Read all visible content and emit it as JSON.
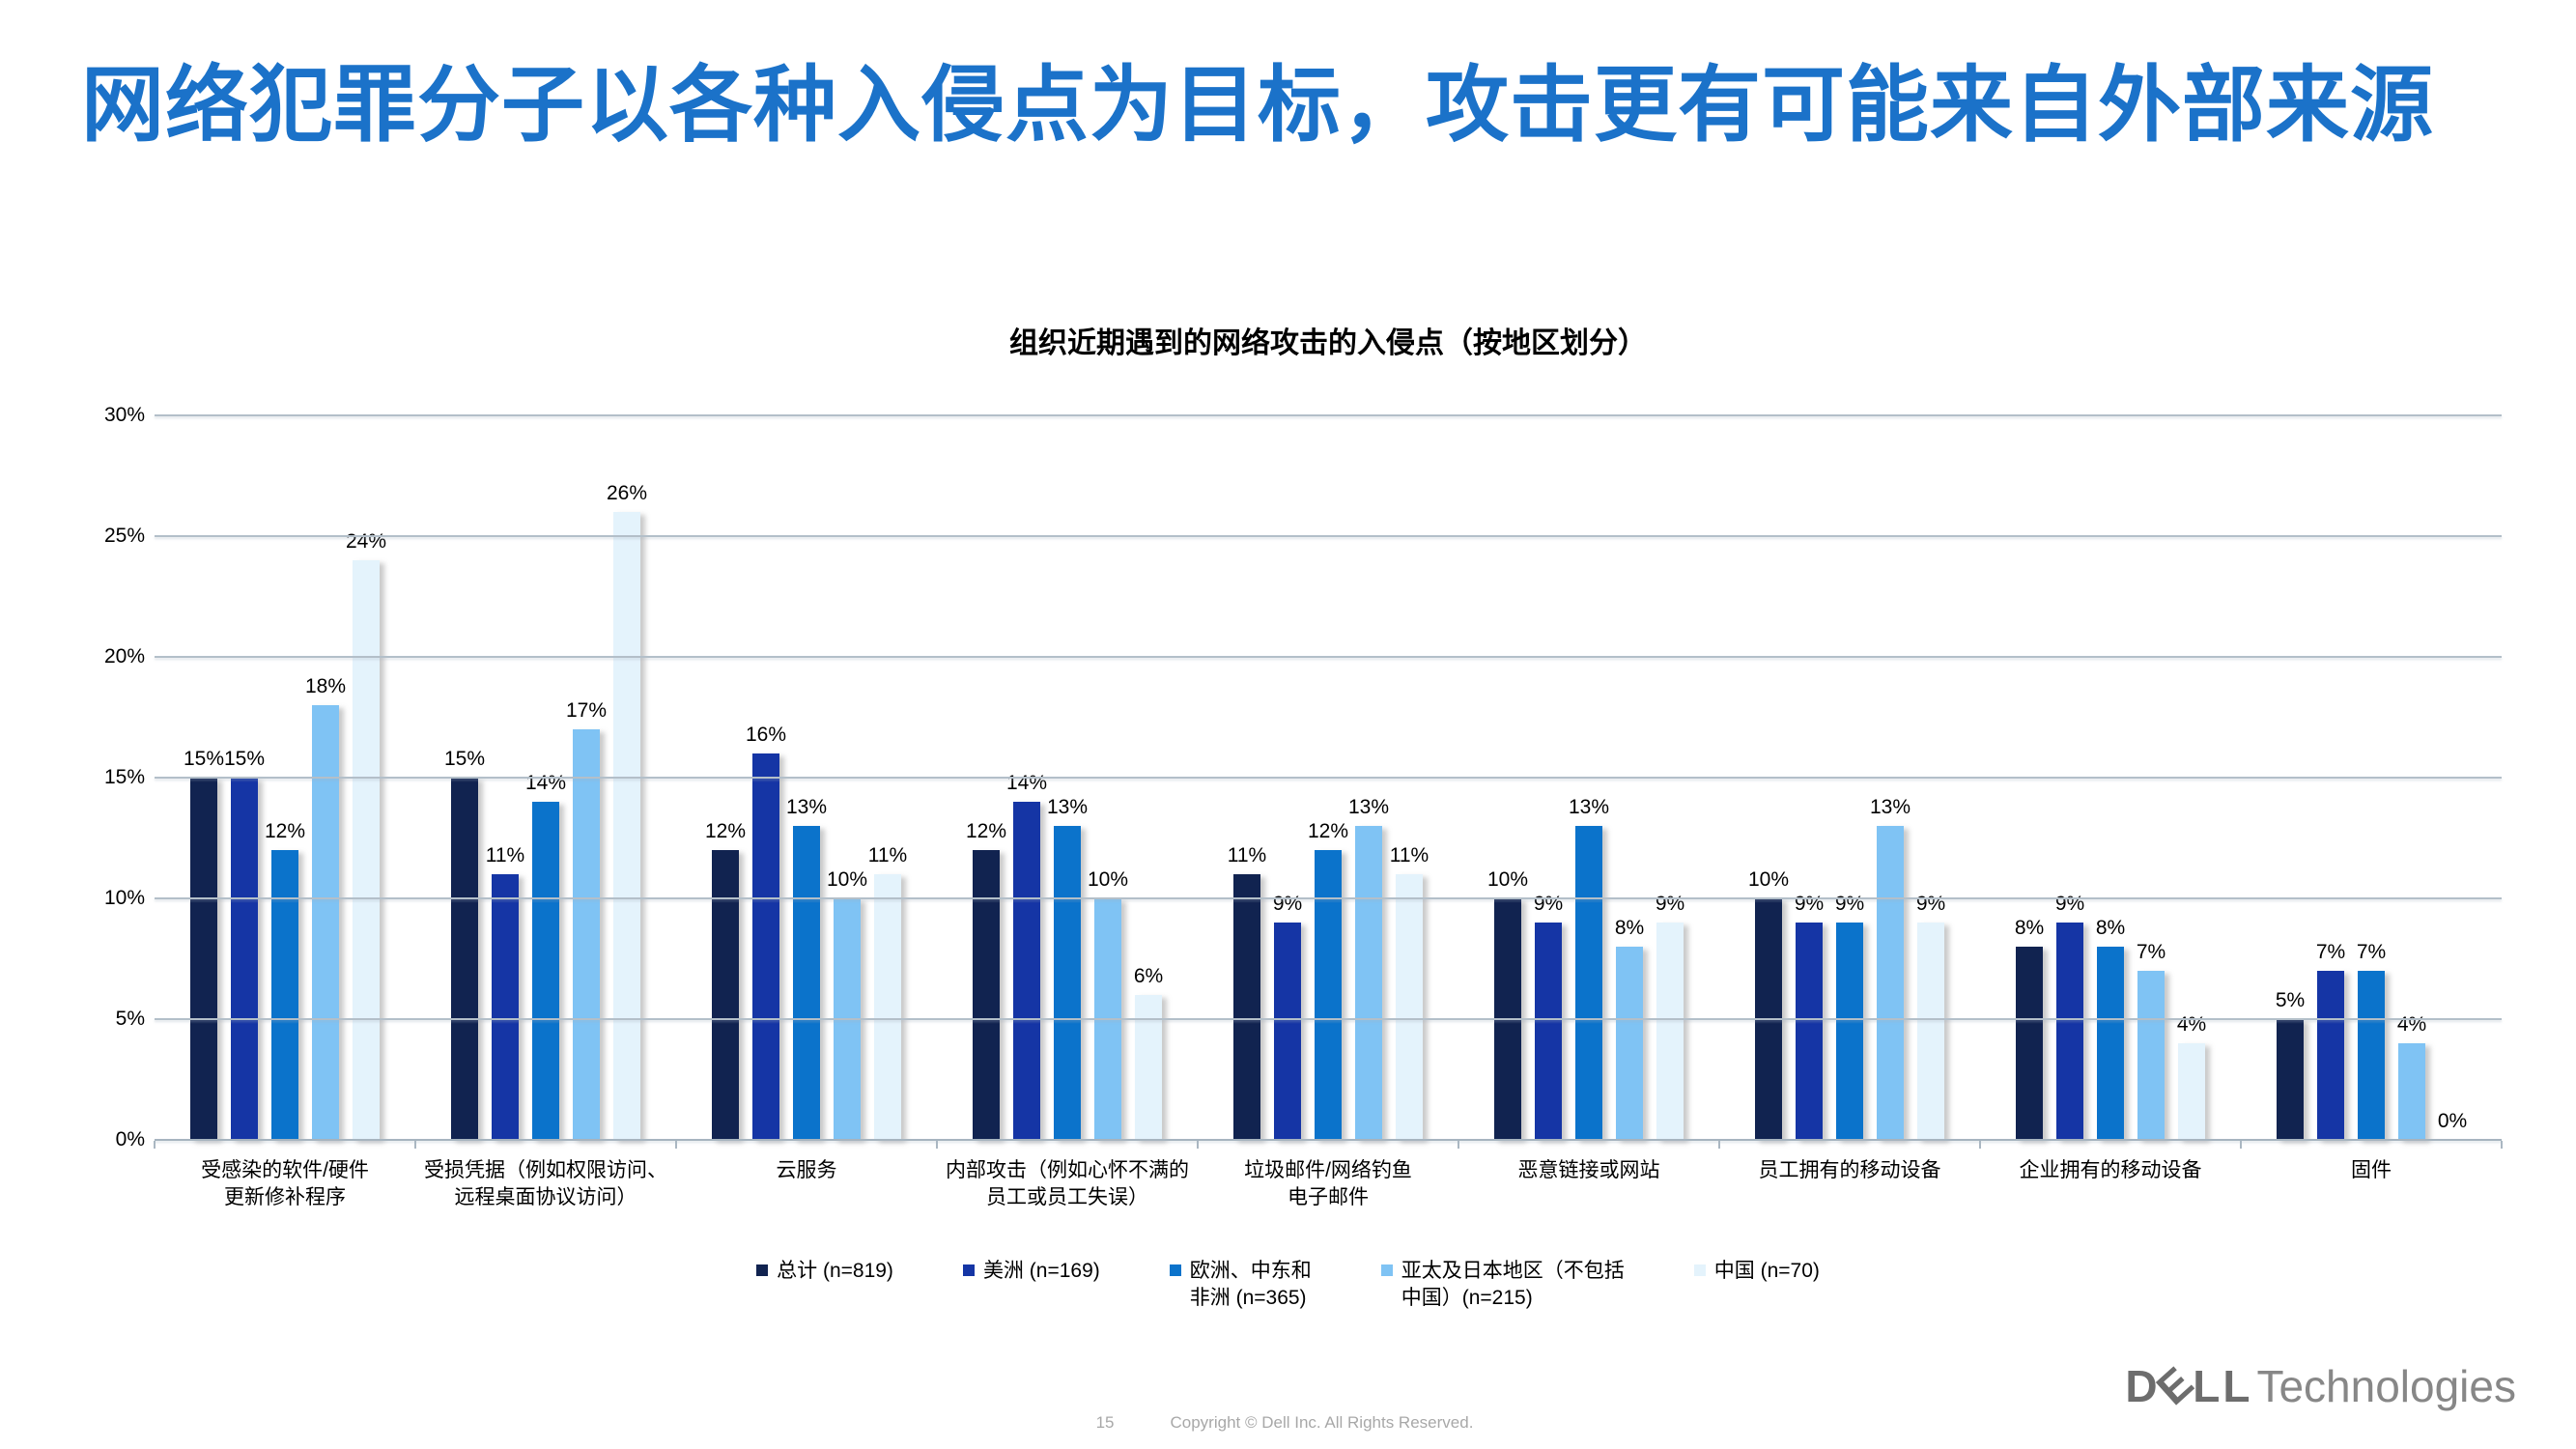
{
  "slide": {
    "title": "网络犯罪分子以各种入侵点为目标，攻击更有可能来自外部来源",
    "footer": {
      "page_number": "15",
      "copyright": "Copyright © Dell Inc. All Rights Reserved."
    },
    "logo": {
      "dell_d": "D",
      "dell_e": "E",
      "dell_ll": "LL",
      "technologies": "Technologies"
    }
  },
  "chart_data": {
    "type": "bar",
    "title": "组织近期遇到的网络攻击的入侵点（按地区划分）",
    "value_suffix": "%",
    "ylim": [
      0,
      30
    ],
    "yticks": [
      "0%",
      "5%",
      "10%",
      "15%",
      "20%",
      "25%",
      "30%"
    ],
    "grid": true,
    "legend_position": "bottom",
    "categories": [
      "受感染的软件/硬件\n更新修补程序",
      "受损凭据（例如权限访问、\n远程桌面协议访问）",
      "云服务",
      "内部攻击（例如心怀不满的\n员工或员工失误）",
      "垃圾邮件/网络钓鱼\n电子邮件",
      "恶意链接或网站",
      "员工拥有的移动设备",
      "企业拥有的移动设备",
      "固件"
    ],
    "series": [
      {
        "name": "总计 (n=819)",
        "legend_label": "总计 (n=819)",
        "color": "#112350",
        "values": [
          15,
          15,
          12,
          12,
          11,
          10,
          10,
          8,
          5
        ]
      },
      {
        "name": "美洲 (n=169)",
        "legend_label": "美洲 (n=169)",
        "color": "#1535A5",
        "values": [
          15,
          11,
          16,
          14,
          9,
          9,
          9,
          9,
          7
        ]
      },
      {
        "name": "欧洲、中东和非洲 (n=365)",
        "legend_label": "欧洲、中东和\n非洲 (n=365)",
        "color": "#0B73CB",
        "values": [
          12,
          14,
          13,
          13,
          12,
          13,
          9,
          8,
          7
        ]
      },
      {
        "name": "亚太及日本地区（不包括中国）(n=215)",
        "legend_label": "亚太及日本地区（不包括\n中国）(n=215)",
        "color": "#7FC3F4",
        "values": [
          18,
          17,
          10,
          10,
          13,
          8,
          13,
          7,
          4
        ]
      },
      {
        "name": "中国 (n=70)",
        "legend_label": "中国 (n=70)",
        "color": "#E4F3FC",
        "values": [
          24,
          26,
          11,
          6,
          11,
          9,
          9,
          4,
          0
        ]
      }
    ]
  }
}
